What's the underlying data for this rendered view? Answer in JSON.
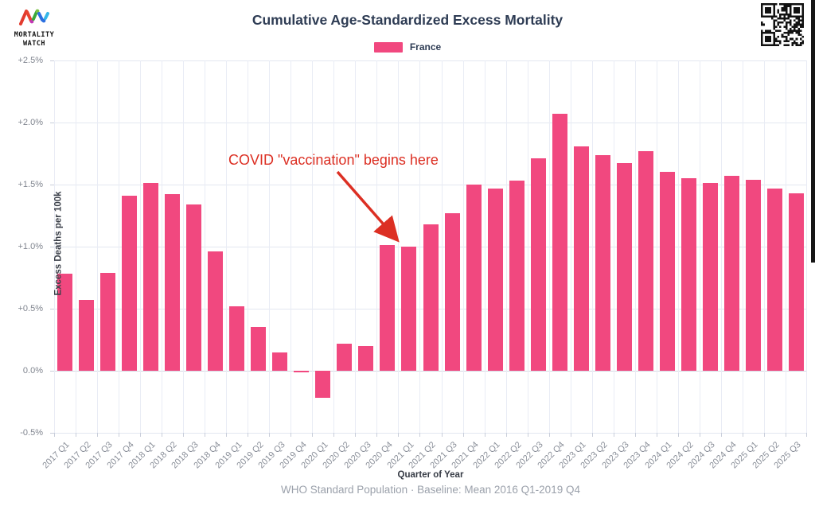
{
  "header": {
    "logo_line1": "MORTALITY",
    "logo_line2": "WATCH",
    "title": "Cumulative Age-Standardized Excess Mortality"
  },
  "legend": {
    "label": "France",
    "color": "#F1487F"
  },
  "annotation": {
    "text": "COVID \"vaccination\" begins here",
    "color": "#DC2F23",
    "points_to": "2021 Q1"
  },
  "chart_data": {
    "type": "bar",
    "title": "Cumulative Age-Standardized Excess Mortality",
    "legend_entries": [
      "France"
    ],
    "legend_position": "top",
    "grid": true,
    "bar_color": "#F1487F",
    "xlabel": "Quarter of Year",
    "ylabel": "Excess Deaths per 100k",
    "caption": "WHO Standard Population · Baseline: Mean 2016 Q1-2019 Q4",
    "unit": "percent",
    "ylim": [
      -0.5,
      2.5
    ],
    "ytick_labels": [
      "+2.5%",
      "+2.0%",
      "+1.5%",
      "+1.0%",
      "+0.5%",
      "0.0%",
      "-0.5%"
    ],
    "categories": [
      "2017 Q1",
      "2017 Q2",
      "2017 Q3",
      "2017 Q4",
      "2018 Q1",
      "2018 Q2",
      "2018 Q3",
      "2018 Q4",
      "2019 Q1",
      "2019 Q2",
      "2019 Q3",
      "2019 Q4",
      "2020 Q1",
      "2020 Q2",
      "2020 Q3",
      "2020 Q4",
      "2021 Q1",
      "2021 Q2",
      "2021 Q3",
      "2021 Q4",
      "2022 Q1",
      "2022 Q2",
      "2022 Q3",
      "2022 Q4",
      "2023 Q1",
      "2023 Q2",
      "2023 Q3",
      "2023 Q4",
      "2024 Q1",
      "2024 Q2",
      "2024 Q3",
      "2024 Q4",
      "2025 Q1",
      "2025 Q2",
      "2025 Q3"
    ],
    "series": [
      {
        "name": "France",
        "values": [
          0.78,
          0.57,
          0.79,
          1.41,
          1.51,
          1.42,
          1.34,
          0.96,
          0.52,
          0.35,
          0.15,
          -0.01,
          -0.22,
          0.22,
          0.2,
          1.01,
          1.0,
          1.18,
          1.27,
          1.5,
          1.47,
          1.53,
          1.71,
          2.07,
          1.81,
          1.74,
          1.67,
          1.77,
          1.6,
          1.55,
          1.51,
          1.57,
          1.54,
          1.47,
          1.43
        ]
      }
    ]
  }
}
